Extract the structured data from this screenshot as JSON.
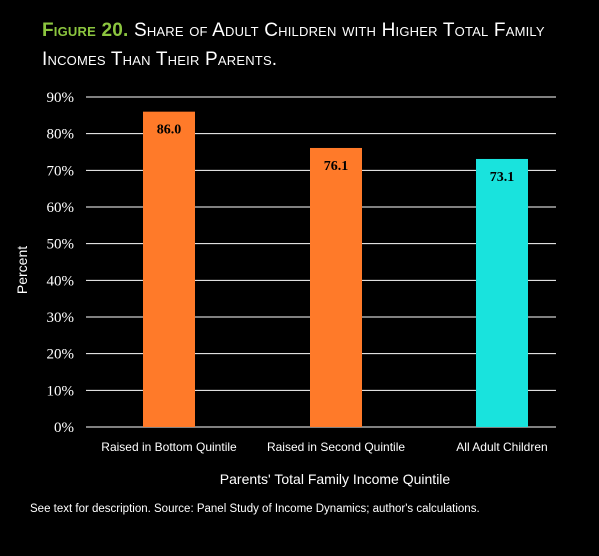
{
  "figure": {
    "label": "Figure 20.",
    "title": "Share of Adult Children with Higher Total Family Incomes Than Their Parents."
  },
  "footnote": "See text for description. Source: Panel Study of Income Dynamics; author's calculations.",
  "colors": {
    "background": "#000000",
    "label_green": "#8cc63f",
    "bar_orange": "#ff7a29",
    "bar_cyan": "#19e3dd",
    "gridline": "#ffffff"
  },
  "chart_data": {
    "type": "bar",
    "categories": [
      "Raised in Bottom Quintile",
      "Raised in Second Quintile",
      "All Adult Children"
    ],
    "values": [
      86.0,
      76.1,
      73.1
    ],
    "value_labels": [
      "86.0",
      "76.1",
      "73.1"
    ],
    "bar_colors": [
      "#ff7a29",
      "#ff7a29",
      "#19e3dd"
    ],
    "xlabel": "Parents' Total Family Income Quintile",
    "ylabel": "Percent",
    "ylim": [
      0,
      90
    ],
    "yticks": [
      0,
      10,
      20,
      30,
      40,
      50,
      60,
      70,
      80,
      90
    ],
    "ytick_labels": [
      "0%",
      "10%",
      "20%",
      "30%",
      "40%",
      "50%",
      "60%",
      "70%",
      "80%",
      "90%"
    ],
    "grid": true,
    "legend": "none"
  }
}
